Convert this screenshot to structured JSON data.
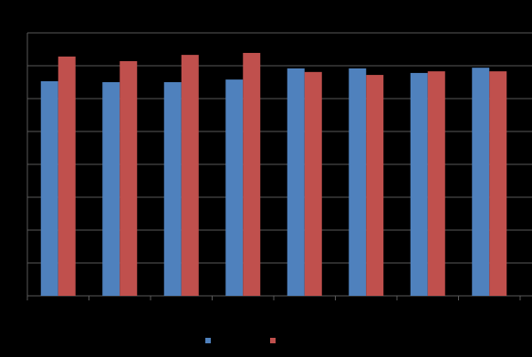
{
  "chart_data": {
    "type": "bar",
    "categories": [
      null,
      null,
      null,
      null,
      null,
      null,
      null,
      null
    ],
    "series": [
      {
        "color": "#4f81bd",
        "values": [
          6.53,
          6.5,
          6.5,
          6.58,
          6.92,
          6.92,
          6.78,
          6.94
        ]
      },
      {
        "color": "#c0504d",
        "values": [
          7.28,
          7.14,
          7.33,
          7.39,
          6.81,
          6.72,
          6.83,
          6.83
        ]
      }
    ],
    "ylim": [
      0,
      8
    ],
    "yticks": [
      0,
      1,
      2,
      3,
      4,
      5,
      6,
      7,
      8
    ],
    "grid": true
  }
}
